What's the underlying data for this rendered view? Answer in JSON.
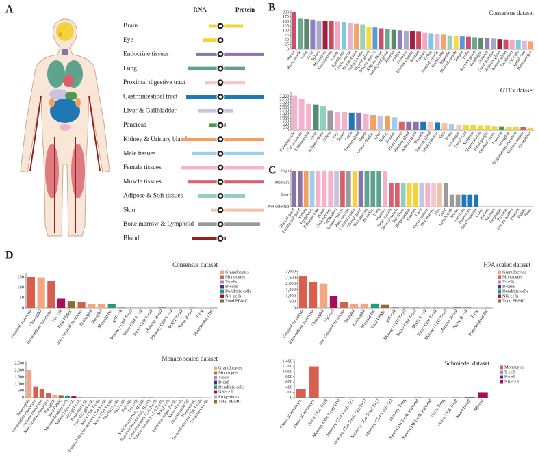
{
  "panel_labels": [
    "A",
    "B",
    "C",
    "D"
  ],
  "chart_data": [
    {
      "type": "diverging_bar",
      "categories": [
        "Brain",
        "Eye",
        "Endocrine tissues",
        "Lung",
        "Proximal digestive tract",
        "Gastrointestinal tract",
        "Liver & Gallbladder",
        "Pancreas",
        "Kidney & Urinary bladder",
        "Male tissues",
        "Female tissues",
        "Muscle tissues",
        "Adipose & Soft tissues",
        "Skin",
        "Bone marrow & Lymphoid",
        "Blood"
      ],
      "colors": [
        "#f3d33a",
        "#f3d33a",
        "#8a73a8",
        "#5fa38e",
        "#f4c6cf",
        "#1f77b4",
        "#c9c3e0",
        "#4d9a4f",
        "#f0a060",
        "#9ccfe8",
        "#f5b2c8",
        "#d8606e",
        "#8fd0c0",
        "#f4c0a6",
        "#9a9a9a",
        "#a01c1c"
      ],
      "series": [
        {
          "name": "RNA",
          "values": [
            17,
            25,
            35,
            47,
            22,
            50,
            32,
            17,
            57,
            42,
            57,
            47,
            32,
            14,
            32,
            42
          ]
        },
        {
          "name": "Protein",
          "values": [
            33,
            0,
            63,
            36,
            36,
            63,
            18,
            8,
            63,
            63,
            63,
            63,
            36,
            63,
            58,
            8
          ]
        }
      ]
    },
    {
      "type": "bar",
      "title": "Consensus dataset",
      "categories": [
        "Breast",
        "Heart muscle",
        "Lung",
        "Liver",
        "Spleen",
        "Monocytes",
        "Granulocytes",
        "Ovary",
        "Epididymis",
        "Cervix uterine",
        "Endometrium",
        "Fallopian tube",
        "Thyroid gland",
        "Smooth muscle",
        "Adipose tissue",
        "Parathyroid gland",
        "Placenta",
        "Kidney",
        "Pancreas",
        "Urinary bladder",
        "Rectum",
        "Prostate",
        "Colon",
        "Seminal vesicle",
        "Gallbladder",
        "Appendix",
        "Skeletal muscle",
        "Tongue",
        "Testis",
        "Salivary gland",
        "Esophagus",
        "Stomach",
        "Small intestine",
        "Pituitary gland",
        "Adrenal gland",
        "Duodenum",
        "NK-cells",
        "Spinal cord",
        "Basal ganglia"
      ],
      "values": [
        200,
        165,
        163,
        160,
        155,
        153,
        152,
        150,
        148,
        143,
        138,
        135,
        120,
        118,
        113,
        110,
        105,
        103,
        100,
        98,
        95,
        90,
        87,
        83,
        80,
        75,
        72,
        70,
        68,
        65,
        62,
        60,
        58,
        55,
        53,
        50,
        48,
        45,
        43
      ],
      "palette": [
        "#c94f6d",
        "#6aa88f",
        "#5d8a6e",
        "#8f7fc0",
        "#a8a8c8",
        "#a01f3c",
        "#d24a5e",
        "#f1a8c0",
        "#7ec8e3",
        "#e8b4d0",
        "#f5a26b",
        "#9ad0b5",
        "#f7d84a",
        "#5b9bd5"
      ],
      "ylim": [
        0,
        200
      ],
      "yticks": [
        0,
        25,
        50,
        75,
        100,
        125,
        150,
        175,
        200
      ]
    },
    {
      "type": "bar",
      "title": "GTEx dataset",
      "categories": [
        "Fallopian tube",
        "Cervix uterine",
        "Endometrium",
        "Lung",
        "Adipose tissue",
        "Spleen",
        "Ovary",
        "Breast",
        "Colon",
        "Thyroid gland",
        "Vagina",
        "Urinary bladder",
        "Liver",
        "Kidney",
        "Prostate",
        "Heart muscle",
        "Pituitary gland",
        "Adrenal gland",
        "Stomach",
        "Salivary gland",
        "Small intestine",
        "Skin",
        "Testis",
        "Esophagus",
        "Spinal cord",
        "Midbrain",
        "Hypothalamus",
        "Basal ganglia",
        "Cerebral cortex",
        "Pancreas",
        "Amygdala",
        "Hippocampal formation",
        "Skeletal muscle",
        "Cerebellum"
      ],
      "values": [
        3100,
        2800,
        2350,
        2300,
        2150,
        1750,
        1650,
        1600,
        1550,
        1550,
        1450,
        1350,
        1300,
        1250,
        1150,
        750,
        750,
        750,
        750,
        700,
        650,
        600,
        550,
        500,
        450,
        450,
        400,
        400,
        350,
        330,
        300,
        280,
        250,
        200
      ],
      "palette": [
        "#f1b3cc",
        "#f1b3cc",
        "#f1b3cc",
        "#4d8f6f",
        "#8fd0c0",
        "#9a9a9a",
        "#f1b3cc",
        "#f1b3cc",
        "#1f77b4",
        "#8a73a8",
        "#f1b3cc",
        "#f0a060",
        "#c9c3e0",
        "#f0a060",
        "#9ccfe8",
        "#d8606e",
        "#8a73a8",
        "#8a73a8",
        "#1f77b4",
        "#f4c6cf",
        "#1f77b4",
        "#f4c0a6",
        "#9ccfe8",
        "#f4c6cf",
        "#f3d33a",
        "#f3d33a",
        "#f3d33a",
        "#f3d33a",
        "#f3d33a",
        "#4d9a4f",
        "#f3d33a",
        "#f3d33a",
        "#d8606e",
        "#f3d33a"
      ],
      "ylim": [
        0,
        3200
      ],
      "yticks": [
        0,
        250,
        500,
        750,
        {
          "value": 1000,
          "label": "1,000"
        },
        {
          "value": 1250,
          "label": "1,250"
        },
        {
          "value": 1500,
          "label": "1,500"
        },
        {
          "value": 1750,
          "label": "1,750"
        },
        {
          "value": 2000,
          "label": "2,000"
        },
        {
          "value": 2250,
          "label": "2,250"
        },
        {
          "value": 2500,
          "label": "2,500"
        },
        {
          "value": 2750,
          "label": "2,750"
        },
        {
          "value": 3000,
          "label": "3,000"
        }
      ]
    },
    {
      "type": "bar",
      "categories": [
        "Thyroid gland",
        "Parathyroid gland",
        "Kidney",
        "Epididymis",
        "Fallopian tube",
        "Breast",
        "Endometrium",
        "Gallbladder",
        "Smooth muscle",
        "Bone marrow",
        "Cerebral cortex",
        "Adrenal gland",
        "Nasopharynx",
        "Bronchus",
        "Lung",
        "Placenta",
        "Heart muscle",
        "Skeletal muscle",
        "Soft tissue",
        "Hippocampus",
        "Caudate",
        "Liver",
        "Cervix uterine",
        "Oral mucosa",
        "Skin",
        "Tonsil",
        "Lymph node",
        "Spleen",
        "Appendix",
        "Duodenum",
        "Small intestine",
        "Colon",
        "Rectum",
        "Stomach",
        "Esophagus",
        "Pancreas",
        "Urinary bladder",
        "Prostate",
        "Vagina",
        "Testis"
      ],
      "values": [
        3,
        3,
        3,
        3,
        3,
        3,
        3,
        3,
        3,
        3,
        3,
        3,
        3,
        3,
        3,
        3,
        2,
        2,
        2,
        2,
        2,
        2,
        2,
        2,
        2,
        2,
        1,
        1,
        1,
        1,
        1,
        0,
        0,
        0,
        0,
        0,
        0,
        0,
        0,
        0
      ],
      "palette": [
        "#8a73a8",
        "#8a73a8",
        "#f0a060",
        "#9ccfe8",
        "#f5b2c8",
        "#f5b2c8",
        "#f5b2c8",
        "#c9c3e0",
        "#d8606e",
        "#9a9a9a",
        "#f3d33a",
        "#8a73a8",
        "#5fa38e",
        "#5fa38e",
        "#5fa38e",
        "#f5b2c8",
        "#d8606e",
        "#d8606e",
        "#8fd0c0",
        "#f3d33a",
        "#f3d33a",
        "#c9c3e0",
        "#f5b2c8",
        "#f4c6cf",
        "#f4c0a6",
        "#9a9a9a",
        "#9a9a9a",
        "#9a9a9a",
        "#1f77b4",
        "#1f77b4",
        "#1f77b4"
      ],
      "ylim": [
        0,
        3
      ],
      "yticks": [
        {
          "value": 0,
          "label": "Not detected"
        },
        {
          "value": 1,
          "label": "Low"
        },
        {
          "value": 2,
          "label": "Medium"
        },
        {
          "value": 3,
          "label": "High"
        }
      ]
    },
    {
      "type": "bar",
      "title": "Consensus dataset",
      "categories": [
        "classical monocyte",
        "Neutrophil",
        "intermediate monocyte",
        "NK-cell",
        "Total PBMC",
        "non-classical monocyte",
        "Eosinophil",
        "Basophil",
        "Myeloid DC",
        "gdT-cell",
        "Memory CD4 T-cell",
        "Naive CD4 T-cell",
        "Naive CD8 T-cell",
        "Memory B-cell",
        "Memory CD8 T-cell",
        "MAIT T-cell",
        "Naive B-cell",
        "T-reg",
        "Plasmacytoid DC"
      ],
      "values": [
        150,
        148,
        130,
        45,
        33,
        30,
        20,
        20,
        20,
        3,
        2,
        2,
        2,
        2,
        2,
        2,
        1,
        1,
        1
      ],
      "colors": [
        "#d6604d",
        "#f4a582",
        "#d6604d",
        "#a50f5a",
        "#8c6d31",
        "#d6604d",
        "#f4a582",
        "#f4a582",
        "#1b9e77",
        "#8c96c6",
        "#8c96c6",
        "#8c96c6",
        "#8c96c6",
        "#542788",
        "#8c96c6",
        "#8c96c6",
        "#542788",
        "#8c96c6",
        "#1b9e77"
      ],
      "legend": [
        {
          "name": "Granulocytes",
          "color": "#f4a582"
        },
        {
          "name": "Monocytes",
          "color": "#d6604d"
        },
        {
          "name": "T-cells",
          "color": "#8c96c6"
        },
        {
          "name": "B-cells",
          "color": "#542788"
        },
        {
          "name": "Dendritic cells",
          "color": "#1b9e77"
        },
        {
          "name": "NK-cells",
          "color": "#a50f5a"
        },
        {
          "name": "Total PBMC",
          "color": "#8c6d31"
        }
      ],
      "ylim": [
        0,
        160
      ],
      "yticks": [
        0,
        50,
        100,
        150
      ]
    },
    {
      "type": "bar",
      "title": "HPA scaled dataset",
      "categories": [
        "classical monocyte",
        "intermediate monocyte",
        "Neutrophil",
        "NK-cell",
        "non-classical monocyte",
        "Basophil",
        "Eosinophil",
        "Myeloid DC",
        "Total PBMC",
        "gdT-cell",
        "Memory CD4 T-cell",
        "Naive CD8 T-cell",
        "MAIT T-cell",
        "Naive CD4 T-cell",
        "Memory CD8 T-cell",
        "Memory B-cell",
        "Naive B-cell",
        "T-reg",
        "Plasmacytoid DC"
      ],
      "values": [
        2600,
        2150,
        2000,
        1000,
        500,
        350,
        350,
        350,
        300,
        60,
        50,
        45,
        40,
        40,
        40,
        35,
        30,
        25,
        20
      ],
      "colors": [
        "#d6604d",
        "#d6604d",
        "#f4a582",
        "#a50f5a",
        "#d6604d",
        "#f4a582",
        "#f4a582",
        "#1b9e77",
        "#8c6d31",
        "#8c96c6",
        "#8c96c6",
        "#8c96c6",
        "#8c96c6",
        "#8c96c6",
        "#8c96c6",
        "#542788",
        "#542788",
        "#8c96c6",
        "#1b9e77"
      ],
      "legend": [
        {
          "name": "Granulocytes",
          "color": "#f4a582"
        },
        {
          "name": "Monocytes",
          "color": "#d6604d"
        },
        {
          "name": "T-cells",
          "color": "#8c96c6"
        },
        {
          "name": "B-cells",
          "color": "#542788"
        },
        {
          "name": "Dendritic cells",
          "color": "#1b9e77"
        },
        {
          "name": "NK-cells",
          "color": "#a50f5a"
        },
        {
          "name": "Total PBMC",
          "color": "#8c6d31"
        }
      ],
      "ylim": [
        0,
        3000
      ],
      "yticks": [
        0,
        500,
        {
          "value": 1000,
          "label": "1,000"
        },
        {
          "value": 1500,
          "label": "1,500"
        },
        {
          "value": 2000,
          "label": "2,000"
        },
        {
          "value": 2500,
          "label": "2,500"
        },
        {
          "value": 3000,
          "label": "3,000"
        }
      ]
    },
    {
      "type": "bar",
      "title": "Monaco scaled dataset",
      "categories": [
        "Neutrophils",
        "Intermediate monocytes",
        "classical monocytes",
        "Non classical monocytes",
        "Basophils",
        "Total PBMC",
        "Myeloid dendritic cells",
        "Natural killer cells",
        "Vd2 gdT-cells",
        "Progenitor cells",
        "Non-Vd2 gdT-cells",
        "Naive CD8 T-cells",
        "Terminal effector memory CD4 T-cells",
        "Naive CD4 T-cells",
        "Th1/Th17 cells",
        "Th17 cells",
        "Th2 cells",
        "Th1 cells",
        "Switched memory B-cells",
        "Non-switched memory B-cells",
        "Central memory CD8 T-cells",
        "Effector memory CD8 T-cells",
        "MAIT cells",
        "Follicular helper T-cells",
        "Naive B-cells",
        "Plasmacytoid DC",
        "Plasmablasts",
        "Terminal effector CD8 T-cells",
        "T regulatory cells"
      ],
      "values": [
        2000,
        820,
        650,
        320,
        200,
        180,
        160,
        100,
        40,
        40,
        35,
        30,
        30,
        28,
        25,
        25,
        20,
        20,
        20,
        18,
        15,
        15,
        15,
        12,
        12,
        10,
        8,
        10,
        10
      ],
      "colors": [
        "#f4a582",
        "#d6604d",
        "#d6604d",
        "#d6604d",
        "#f4a582",
        "#8c6d31",
        "#1b9e77",
        "#a50f5a",
        "#8c96c6",
        "#c2a5cf",
        "#8c96c6",
        "#8c96c6",
        "#8c96c6",
        "#8c96c6",
        "#8c96c6",
        "#8c96c6",
        "#8c96c6",
        "#8c96c6",
        "#542788",
        "#542788",
        "#8c96c6",
        "#8c96c6",
        "#8c96c6",
        "#8c96c6",
        "#542788",
        "#1b9e77",
        "#542788",
        "#8c96c6",
        "#8c96c6"
      ],
      "legend": [
        {
          "name": "Granulocytes",
          "color": "#f4a582"
        },
        {
          "name": "Monocytes",
          "color": "#d6604d"
        },
        {
          "name": "T-cell",
          "color": "#8c96c6"
        },
        {
          "name": "B-cell",
          "color": "#542788"
        },
        {
          "name": "Dendritic cells",
          "color": "#1b9e77"
        },
        {
          "name": "NK-cell",
          "color": "#a50f5a"
        },
        {
          "name": "Progenitors",
          "color": "#c2a5cf"
        },
        {
          "name": "Total PBMC",
          "color": "#8c6d31"
        }
      ],
      "ylim": [
        0,
        2500
      ],
      "yticks": [
        0,
        500,
        {
          "value": 1000,
          "label": "1,000"
        },
        {
          "value": 1500,
          "label": "1,500"
        },
        {
          "value": 2000,
          "label": "2,000"
        },
        {
          "value": 2500,
          "label": "2,500"
        }
      ]
    },
    {
      "type": "bar",
      "title": "Schmiedel dataset",
      "categories": [
        "Classical monocyte",
        "classical monocyte",
        "Naive CD4 T-cell",
        "Memory CD4 T-cell TFH",
        "Memory CD4 T-cell Th1",
        "Memory CD4 T-cell Th1/Th17",
        "Memory CD4 T-cell Th17",
        "Memory CD4 T-cell Th2",
        "Memory T-reg",
        "Naive CD4 T-cell activated",
        "Naive CD8 T-cell activated",
        "Naive T-reg",
        "Naive CD8 T-cell",
        "Naive B-cell",
        "NK-cell"
      ],
      "values": [
        320,
        1200,
        20,
        25,
        20,
        20,
        20,
        20,
        15,
        20,
        15,
        15,
        20,
        20,
        200
      ],
      "colors": [
        "#d6604d",
        "#d6604d",
        "#8c96c6",
        "#8c96c6",
        "#8c96c6",
        "#8c96c6",
        "#8c96c6",
        "#8c96c6",
        "#8c96c6",
        "#8c96c6",
        "#8c96c6",
        "#8c96c6",
        "#8c96c6",
        "#542788",
        "#a50f5a"
      ],
      "legend": [
        {
          "name": "Monocytes",
          "color": "#d6604d"
        },
        {
          "name": "T-cell",
          "color": "#8c96c6"
        },
        {
          "name": "B-cell",
          "color": "#542788"
        },
        {
          "name": "NK-cell",
          "color": "#a50f5a"
        }
      ],
      "ylim": [
        0,
        1400
      ],
      "yticks": [
        0,
        200,
        400,
        600,
        800,
        {
          "value": 1000,
          "label": "1,000"
        },
        {
          "value": 1200,
          "label": "1,200"
        },
        {
          "value": 1400,
          "label": "1,400"
        }
      ]
    }
  ]
}
